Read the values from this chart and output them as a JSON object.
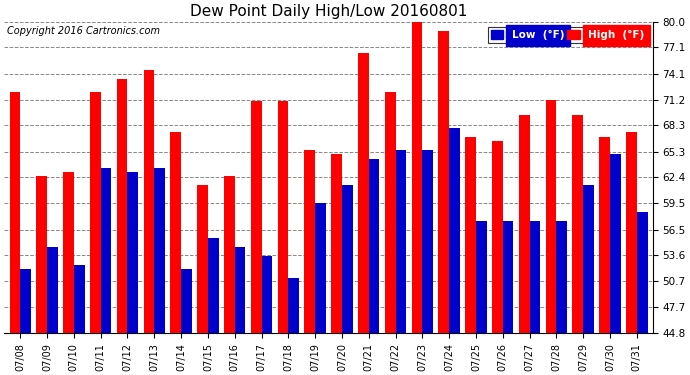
{
  "title": "Dew Point Daily High/Low 20160801",
  "copyright": "Copyright 2016 Cartronics.com",
  "legend_low": "Low  (°F)",
  "legend_high": "High  (°F)",
  "dates": [
    "07/08",
    "07/09",
    "07/10",
    "07/11",
    "07/12",
    "07/13",
    "07/14",
    "07/15",
    "07/16",
    "07/17",
    "07/18",
    "07/19",
    "07/20",
    "07/21",
    "07/22",
    "07/23",
    "07/24",
    "07/25",
    "07/26",
    "07/27",
    "07/28",
    "07/29",
    "07/30",
    "07/31"
  ],
  "high_values": [
    72.0,
    62.5,
    63.0,
    72.0,
    73.5,
    74.5,
    67.5,
    61.5,
    62.5,
    71.0,
    71.0,
    65.5,
    65.0,
    76.5,
    72.0,
    81.0,
    79.0,
    67.0,
    66.5,
    69.5,
    71.2,
    69.5,
    67.0,
    67.5
  ],
  "low_values": [
    52.0,
    54.5,
    52.5,
    63.5,
    63.0,
    63.5,
    52.0,
    55.5,
    54.5,
    53.5,
    51.0,
    59.5,
    61.5,
    64.5,
    65.5,
    65.5,
    68.0,
    57.5,
    57.5,
    57.5,
    57.5,
    61.5,
    65.0,
    58.5
  ],
  "ylim": [
    44.8,
    80.0
  ],
  "yticks": [
    44.8,
    47.7,
    50.7,
    53.6,
    56.5,
    59.5,
    62.4,
    65.3,
    68.3,
    71.2,
    74.1,
    77.1,
    80.0
  ],
  "high_color": "#ff0000",
  "low_color": "#0000cc",
  "bg_color": "#ffffff",
  "grid_color": "#888888",
  "bar_width": 0.4
}
